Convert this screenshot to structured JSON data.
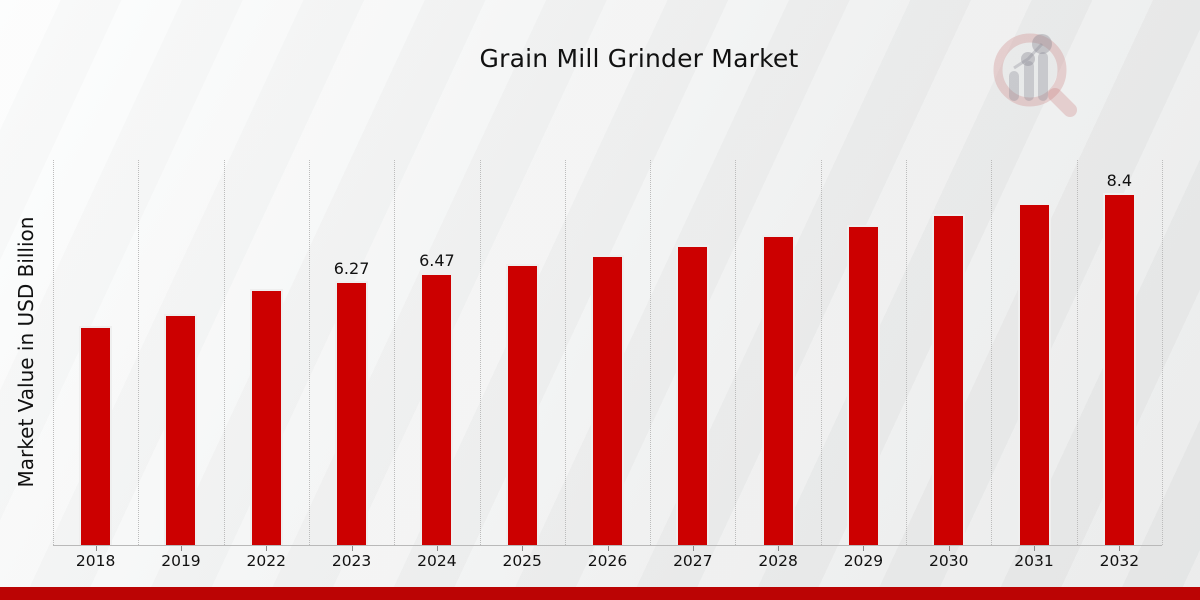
{
  "page": {
    "watermark_icon": "magnifier-bar-chart-logo"
  },
  "chart_data": {
    "type": "bar",
    "title": "Grain Mill Grinder Market",
    "xlabel": "",
    "ylabel": "Market Value in USD Billion",
    "categories": [
      "2018",
      "2019",
      "2022",
      "2023",
      "2024",
      "2025",
      "2026",
      "2027",
      "2028",
      "2029",
      "2030",
      "2031",
      "2032"
    ],
    "values": [
      5.2,
      5.5,
      6.08,
      6.27,
      6.47,
      6.69,
      6.91,
      7.14,
      7.38,
      7.63,
      7.88,
      8.14,
      8.4
    ],
    "data_labels": [
      "",
      "",
      "",
      "6.27",
      "6.47",
      "",
      "",
      "",
      "",
      "",
      "",
      "",
      "8.4"
    ],
    "ylim": [
      0,
      9.23
    ],
    "grid": "vertical-dotted",
    "legend": "none",
    "bar_color": "#cc0000",
    "bar_edge_color": "#efefef",
    "footer_bar_color": "#bb0404",
    "text_color": "#111111"
  }
}
